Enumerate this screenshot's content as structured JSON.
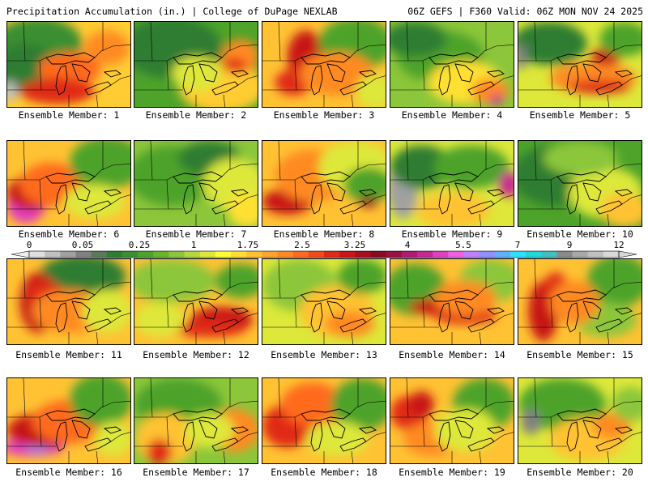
{
  "header": {
    "left": "Precipitation Accumulation (in.) | College of DuPage NEXLAB",
    "right": "06Z GEFS | F360 Valid: 06Z MON NOV 24 2025"
  },
  "scale": {
    "labels": [
      "0",
      "0.05",
      "0.25",
      "1",
      "1.75",
      "2.5",
      "3.25",
      "4",
      "5.5",
      "7",
      "9",
      "12"
    ],
    "colors": [
      "#e0e0e0",
      "#c0c0c0",
      "#a0a0a0",
      "#808080",
      "#5a7a5a",
      "#2f7d32",
      "#3b8f30",
      "#4ea32a",
      "#69b52a",
      "#8cc63a",
      "#b5d93a",
      "#dde83a",
      "#ffff33",
      "#ffe033",
      "#ffc233",
      "#ffa52a",
      "#ff8a24",
      "#ff6a1e",
      "#f24a1a",
      "#e02a18",
      "#c81616",
      "#a80f1a",
      "#8a0a20",
      "#9a1040",
      "#b01a70",
      "#c82890",
      "#e040c0",
      "#f060e0",
      "#c080ff",
      "#9090ff",
      "#60b0ff",
      "#30e0ff",
      "#20d8d8",
      "#40c0c0",
      "#8a8a8a",
      "#a8a8a8",
      "#c0c0c0",
      "#d8d8d8"
    ]
  },
  "members": [
    {
      "label": "Ensemble Member: 1",
      "base": "#ffcc33",
      "blobs": [
        [
          "#3b8f30",
          0.25,
          0.25,
          0.35,
          0.3
        ],
        [
          "#2f7d32",
          0.15,
          0.55,
          0.25,
          0.3
        ],
        [
          "#ff6a1e",
          0.5,
          0.55,
          0.25,
          0.2
        ],
        [
          "#e02a18",
          0.4,
          0.8,
          0.3,
          0.15
        ],
        [
          "#c0c0c0",
          0.02,
          0.8,
          0.06,
          0.12
        ],
        [
          "#ff8a24",
          0.8,
          0.3,
          0.18,
          0.2
        ]
      ]
    },
    {
      "label": "Ensemble Member: 2",
      "base": "#4ea32a",
      "blobs": [
        [
          "#2f7d32",
          0.3,
          0.3,
          0.4,
          0.35
        ],
        [
          "#ffcc33",
          0.7,
          0.75,
          0.35,
          0.3
        ],
        [
          "#ff8a24",
          0.85,
          0.4,
          0.15,
          0.2
        ],
        [
          "#e02a18",
          0.8,
          0.5,
          0.1,
          0.08
        ],
        [
          "#dde83a",
          0.5,
          0.6,
          0.2,
          0.2
        ]
      ]
    },
    {
      "label": "Ensemble Member: 3",
      "base": "#ffc233",
      "blobs": [
        [
          "#c81616",
          0.35,
          0.4,
          0.15,
          0.3
        ],
        [
          "#e02a18",
          0.25,
          0.7,
          0.15,
          0.15
        ],
        [
          "#4ea32a",
          0.75,
          0.25,
          0.3,
          0.3
        ],
        [
          "#ff8a24",
          0.6,
          0.6,
          0.3,
          0.25
        ],
        [
          "#dde83a",
          0.9,
          0.8,
          0.15,
          0.2
        ]
      ]
    },
    {
      "label": "Ensemble Member: 4",
      "base": "#8cc63a",
      "blobs": [
        [
          "#4ea32a",
          0.4,
          0.4,
          0.35,
          0.3
        ],
        [
          "#ffe033",
          0.6,
          0.7,
          0.3,
          0.25
        ],
        [
          "#ff8a24",
          0.8,
          0.8,
          0.15,
          0.15
        ],
        [
          "#c82890",
          0.85,
          0.9,
          0.05,
          0.06
        ],
        [
          "#2f7d32",
          0.2,
          0.2,
          0.25,
          0.2
        ]
      ]
    },
    {
      "label": "Ensemble Member: 5",
      "base": "#dde83a",
      "blobs": [
        [
          "#2f7d32",
          0.25,
          0.25,
          0.3,
          0.25
        ],
        [
          "#ff8a24",
          0.6,
          0.65,
          0.35,
          0.18
        ],
        [
          "#c81616",
          0.7,
          0.4,
          0.12,
          0.1
        ],
        [
          "#e02a18",
          0.65,
          0.75,
          0.25,
          0.08
        ],
        [
          "#808080",
          0.02,
          0.4,
          0.05,
          0.15
        ],
        [
          "#4ea32a",
          0.85,
          0.2,
          0.2,
          0.2
        ]
      ]
    },
    {
      "label": "Ensemble Member: 6",
      "base": "#ffc233",
      "blobs": [
        [
          "#e040c0",
          0.15,
          0.75,
          0.15,
          0.2
        ],
        [
          "#c81616",
          0.2,
          0.6,
          0.2,
          0.2
        ],
        [
          "#ff6a1e",
          0.35,
          0.5,
          0.25,
          0.25
        ],
        [
          "#4ea32a",
          0.8,
          0.25,
          0.3,
          0.3
        ],
        [
          "#dde83a",
          0.7,
          0.7,
          0.25,
          0.2
        ]
      ]
    },
    {
      "label": "Ensemble Member: 7",
      "base": "#8cc63a",
      "blobs": [
        [
          "#4ea32a",
          0.3,
          0.4,
          0.35,
          0.35
        ],
        [
          "#2f7d32",
          0.6,
          0.2,
          0.25,
          0.2
        ],
        [
          "#dde83a",
          0.8,
          0.5,
          0.25,
          0.3
        ],
        [
          "#ffe033",
          0.9,
          0.8,
          0.15,
          0.2
        ]
      ]
    },
    {
      "label": "Ensemble Member: 8",
      "base": "#ffc233",
      "blobs": [
        [
          "#e040c0",
          0.15,
          0.75,
          0.08,
          0.08
        ],
        [
          "#c81616",
          0.2,
          0.7,
          0.2,
          0.15
        ],
        [
          "#ff8a24",
          0.4,
          0.4,
          0.3,
          0.3
        ],
        [
          "#dde83a",
          0.75,
          0.3,
          0.3,
          0.3
        ],
        [
          "#4ea32a",
          0.85,
          0.5,
          0.2,
          0.2
        ],
        [
          "#8a0a20",
          0.85,
          0.7,
          0.08,
          0.06
        ]
      ]
    },
    {
      "label": "Ensemble Member: 9",
      "base": "#dde83a",
      "blobs": [
        [
          "#a0a0a0",
          0.1,
          0.55,
          0.12,
          0.35
        ],
        [
          "#2f7d32",
          0.25,
          0.3,
          0.25,
          0.25
        ],
        [
          "#4ea32a",
          0.65,
          0.3,
          0.3,
          0.25
        ],
        [
          "#60b0ff",
          0.97,
          0.5,
          0.04,
          0.12
        ],
        [
          "#c82890",
          0.95,
          0.5,
          0.08,
          0.15
        ],
        [
          "#ffc233",
          0.5,
          0.8,
          0.3,
          0.2
        ]
      ]
    },
    {
      "label": "Ensemble Member: 10",
      "base": "#4ea32a",
      "blobs": [
        [
          "#2f7d32",
          0.3,
          0.4,
          0.35,
          0.35
        ],
        [
          "#dde83a",
          0.7,
          0.6,
          0.3,
          0.3
        ],
        [
          "#ffc233",
          0.85,
          0.8,
          0.2,
          0.2
        ],
        [
          "#8cc63a",
          0.5,
          0.2,
          0.3,
          0.2
        ]
      ]
    },
    {
      "label": "Ensemble Member: 11",
      "base": "#ffc233",
      "blobs": [
        [
          "#2f7d32",
          0.6,
          0.2,
          0.35,
          0.25
        ],
        [
          "#c81616",
          0.25,
          0.5,
          0.15,
          0.35
        ],
        [
          "#e02a18",
          0.3,
          0.4,
          0.15,
          0.15
        ],
        [
          "#ff8a24",
          0.5,
          0.6,
          0.3,
          0.25
        ],
        [
          "#dde83a",
          0.8,
          0.6,
          0.2,
          0.25
        ]
      ]
    },
    {
      "label": "Ensemble Member: 12",
      "base": "#ffc233",
      "blobs": [
        [
          "#8cc63a",
          0.3,
          0.25,
          0.35,
          0.25
        ],
        [
          "#c81616",
          0.7,
          0.7,
          0.25,
          0.15
        ],
        [
          "#e02a18",
          0.6,
          0.8,
          0.3,
          0.1
        ],
        [
          "#4ea32a",
          0.85,
          0.25,
          0.2,
          0.2
        ],
        [
          "#dde83a",
          0.2,
          0.7,
          0.2,
          0.2
        ]
      ]
    },
    {
      "label": "Ensemble Member: 13",
      "base": "#dde83a",
      "blobs": [
        [
          "#8cc63a",
          0.3,
          0.3,
          0.3,
          0.3
        ],
        [
          "#ffc233",
          0.6,
          0.6,
          0.3,
          0.3
        ],
        [
          "#4ea32a",
          0.8,
          0.2,
          0.2,
          0.2
        ],
        [
          "#ff8a24",
          0.7,
          0.75,
          0.2,
          0.15
        ]
      ]
    },
    {
      "label": "Ensemble Member: 14",
      "base": "#ffc233",
      "blobs": [
        [
          "#4ea32a",
          0.2,
          0.35,
          0.25,
          0.3
        ],
        [
          "#c81616",
          0.4,
          0.55,
          0.25,
          0.1
        ],
        [
          "#e02a18",
          0.6,
          0.65,
          0.25,
          0.1
        ],
        [
          "#8cc63a",
          0.8,
          0.25,
          0.25,
          0.25
        ],
        [
          "#ff8a24",
          0.6,
          0.45,
          0.25,
          0.2
        ]
      ]
    },
    {
      "label": "Ensemble Member: 15",
      "base": "#ffc233",
      "blobs": [
        [
          "#c81616",
          0.2,
          0.6,
          0.12,
          0.35
        ],
        [
          "#e02a18",
          0.3,
          0.35,
          0.1,
          0.2
        ],
        [
          "#4ea32a",
          0.8,
          0.25,
          0.25,
          0.3
        ],
        [
          "#8cc63a",
          0.7,
          0.7,
          0.25,
          0.2
        ],
        [
          "#ff8a24",
          0.45,
          0.5,
          0.2,
          0.25
        ]
      ]
    },
    {
      "label": "Ensemble Member: 16",
      "base": "#ffc233",
      "blobs": [
        [
          "#e040c0",
          0.2,
          0.8,
          0.25,
          0.1
        ],
        [
          "#9090ff",
          0.25,
          0.8,
          0.1,
          0.06
        ],
        [
          "#c81616",
          0.3,
          0.6,
          0.3,
          0.2
        ],
        [
          "#ff6a1e",
          0.5,
          0.5,
          0.3,
          0.25
        ],
        [
          "#4ea32a",
          0.75,
          0.25,
          0.25,
          0.3
        ],
        [
          "#dde83a",
          0.85,
          0.7,
          0.15,
          0.2
        ]
      ]
    },
    {
      "label": "Ensemble Member: 17",
      "base": "#8cc63a",
      "blobs": [
        [
          "#4ea32a",
          0.35,
          0.3,
          0.35,
          0.3
        ],
        [
          "#ffc233",
          0.25,
          0.7,
          0.25,
          0.3
        ],
        [
          "#e02a18",
          0.2,
          0.85,
          0.1,
          0.15
        ],
        [
          "#ff8a24",
          0.8,
          0.6,
          0.2,
          0.25
        ],
        [
          "#dde83a",
          0.6,
          0.6,
          0.2,
          0.2
        ]
      ]
    },
    {
      "label": "Ensemble Member: 18",
      "base": "#ffc233",
      "blobs": [
        [
          "#e02a18",
          0.2,
          0.55,
          0.2,
          0.25
        ],
        [
          "#ff6a1e",
          0.4,
          0.3,
          0.25,
          0.25
        ],
        [
          "#4ea32a",
          0.8,
          0.3,
          0.25,
          0.3
        ],
        [
          "#dde83a",
          0.6,
          0.7,
          0.25,
          0.2
        ]
      ]
    },
    {
      "label": "Ensemble Member: 19",
      "base": "#ffc233",
      "blobs": [
        [
          "#e02a18",
          0.15,
          0.4,
          0.15,
          0.2
        ],
        [
          "#c81616",
          0.25,
          0.3,
          0.1,
          0.15
        ],
        [
          "#4ea32a",
          0.75,
          0.3,
          0.25,
          0.3
        ],
        [
          "#ff8a24",
          0.35,
          0.7,
          0.25,
          0.2
        ],
        [
          "#dde83a",
          0.6,
          0.6,
          0.25,
          0.25
        ]
      ]
    },
    {
      "label": "Ensemble Member: 20",
      "base": "#dde83a",
      "blobs": [
        [
          "#4ea32a",
          0.35,
          0.3,
          0.35,
          0.3
        ],
        [
          "#808080",
          0.1,
          0.5,
          0.08,
          0.15
        ],
        [
          "#ffc233",
          0.55,
          0.7,
          0.3,
          0.25
        ],
        [
          "#ff8a24",
          0.75,
          0.55,
          0.15,
          0.15
        ],
        [
          "#8cc63a",
          0.9,
          0.3,
          0.15,
          0.2
        ]
      ]
    }
  ]
}
